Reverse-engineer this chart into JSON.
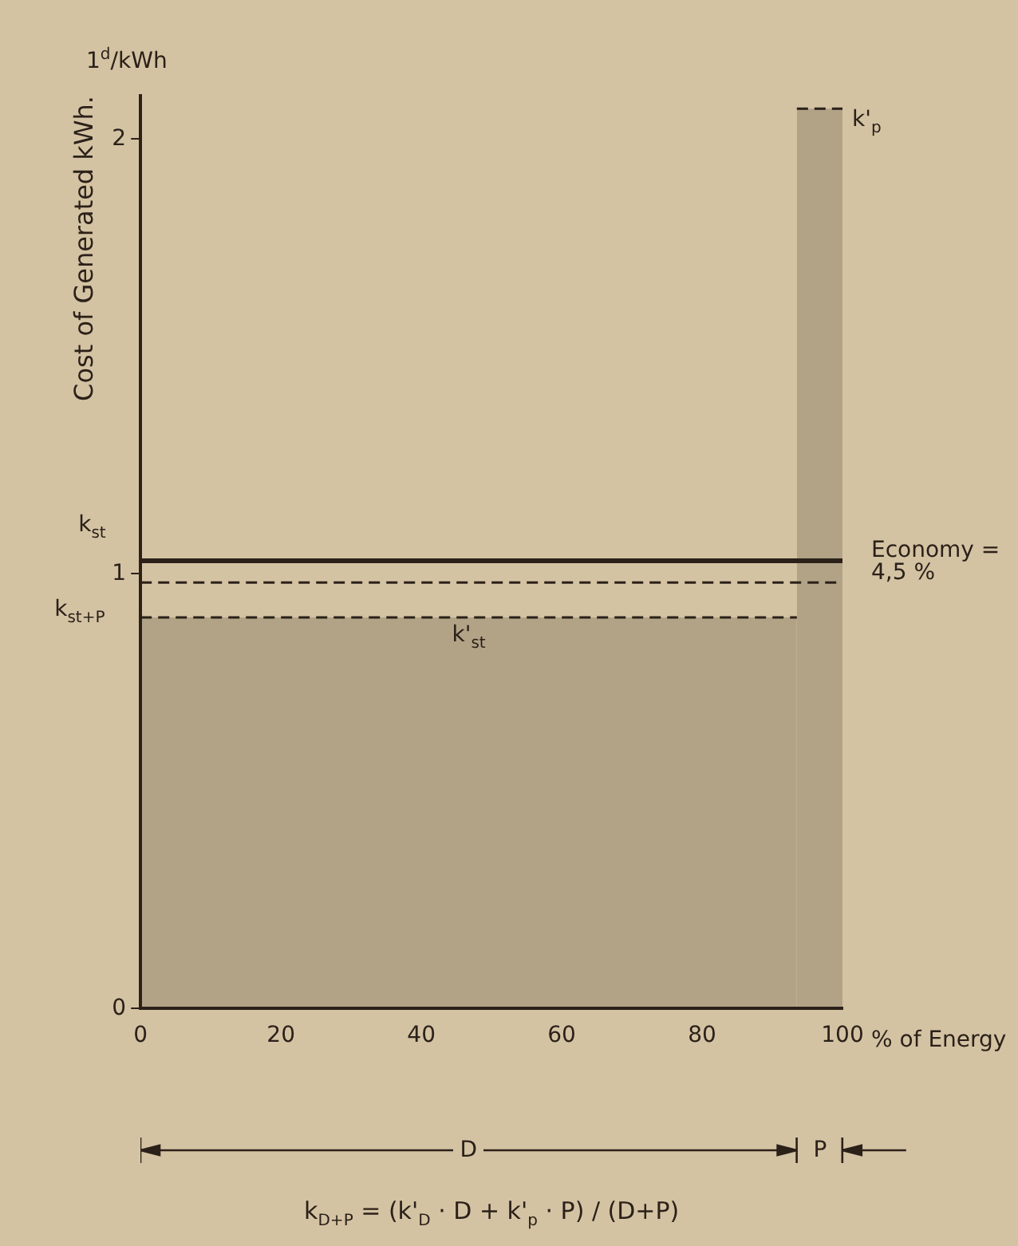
{
  "chart_data": {
    "type": "area",
    "ylabel": "Cost of Generated kWh.",
    "xlabel": "% of Energy",
    "xlim": [
      0,
      100
    ],
    "xticks": [
      0,
      20,
      40,
      60,
      80,
      100
    ],
    "ylim": [
      0,
      2.1
    ],
    "yticks": [
      0,
      1,
      2
    ],
    "grid": false,
    "legend": false,
    "line_style": "dashed",
    "series": [
      {
        "name": "k'$_{st}$",
        "color": "#2b2119",
        "x": [
          0,
          93.5
        ],
        "values": [
          0.9,
          0.9
        ]
      },
      {
        "name": "k'$_{p}$",
        "color": "#2b2119",
        "x": [
          93.5,
          100
        ],
        "values": [
          2.07,
          2.07
        ]
      },
      {
        "name": "k$_{st}$",
        "color": "#2b2119",
        "type": "line",
        "line_style": "solid",
        "x": [
          0,
          100
        ],
        "values": [
          1.03,
          1.03
        ]
      },
      {
        "name": "k$_{st+P}$",
        "color": "#2b2119",
        "type": "line",
        "line_style": "dashed",
        "x": [
          0,
          100
        ],
        "values": [
          0.98,
          0.98
        ]
      }
    ],
    "annotations": [
      "1$^{d}$/kWh",
      "Economy = 4,5 %",
      "D",
      "P",
      "k$_{D+P}$ = (k'$_{D}$ · D + k'$_{p}$ · P) / (D+P)"
    ]
  }
}
